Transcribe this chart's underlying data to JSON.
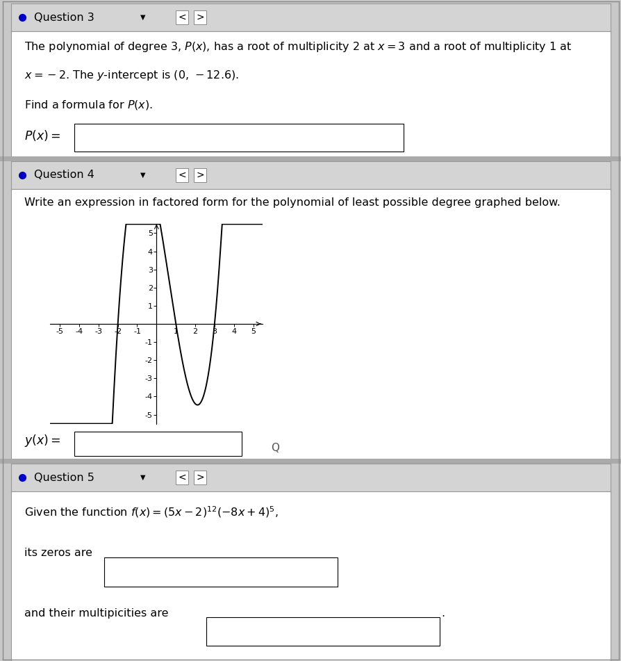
{
  "bg_color": "#c8c8c8",
  "section_bg": "#c8c8c8",
  "header_bg": "#d8d8d8",
  "white": "#ffffff",
  "black": "#000000",
  "q3_header": "Question 3",
  "q4_header": "Question 4",
  "q5_header": "Question 5",
  "q3_line1": "The polynomial of degree 3, $P(x)$, has a root of multiplicity 2 at $x = 3$ and a root of multiplicity 1 at",
  "q3_line2": "$x = -2$. The $y$-intercept is $(0,\\,-12.6)$.",
  "q3_find": "Find a formula for $P(x)$.",
  "q3_px": "$P(x) =$",
  "q4_text": "Write an expression in factored form for the polynomial of least possible degree graphed below.",
  "q4_yx": "$y(x) =$",
  "q5_line1": "Given the function $f(x) = (5x - 2)^{12}(-8x + 4)^5$,",
  "q5_zeros": "its zeros are",
  "q5_mult": "and their multipicities are",
  "poly_roots": [
    -2,
    1,
    3
  ],
  "poly_scale": 0.7,
  "font_text": 11.5,
  "font_header": 11.5,
  "font_axis": 8
}
